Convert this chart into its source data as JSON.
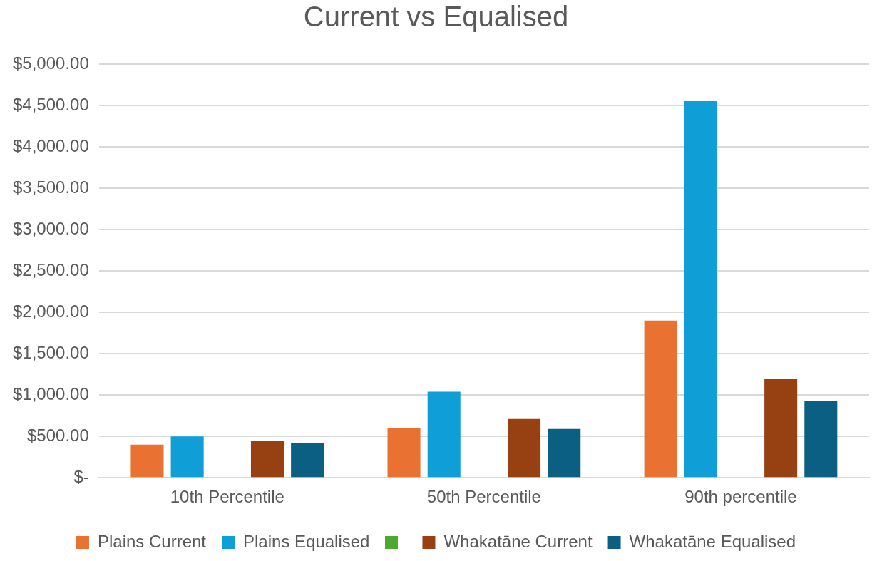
{
  "chart_data": {
    "type": "bar",
    "title": "Current vs Equalised",
    "categories": [
      "10th Percentile",
      "50th Percentile",
      "90th percentile"
    ],
    "series": [
      {
        "name": "Plains Current",
        "color": "#e97132",
        "values": [
          400,
          600,
          1900
        ]
      },
      {
        "name": "Plains Equalised",
        "color": "#0f9ed5",
        "values": [
          500,
          1040,
          4560
        ]
      },
      {
        "color": "#4ea72e",
        "values": [
          null,
          null,
          null
        ]
      },
      {
        "name": "Whakatāne Current",
        "color": "#974011",
        "values": [
          450,
          710,
          1200
        ]
      },
      {
        "name": "Whakatāne Equalised",
        "color": "#0a5f82",
        "values": [
          420,
          590,
          930
        ]
      }
    ],
    "ylim": [
      0,
      5000
    ],
    "yticks": [
      {
        "value": 0,
        "label": "$-"
      },
      {
        "value": 500,
        "label": "$500.00"
      },
      {
        "value": 1000,
        "label": "$1,000.00"
      },
      {
        "value": 1500,
        "label": "$1,500.00"
      },
      {
        "value": 2000,
        "label": "$2,000.00"
      },
      {
        "value": 2500,
        "label": "$2,500.00"
      },
      {
        "value": 3000,
        "label": "$3,000.00"
      },
      {
        "value": 3500,
        "label": "$3,500.00"
      },
      {
        "value": 4000,
        "label": "$4,000.00"
      },
      {
        "value": 4500,
        "label": "$4,500.00"
      },
      {
        "value": 5000,
        "label": "$5,000.00"
      }
    ],
    "grid": "y",
    "legend": "bottom"
  }
}
